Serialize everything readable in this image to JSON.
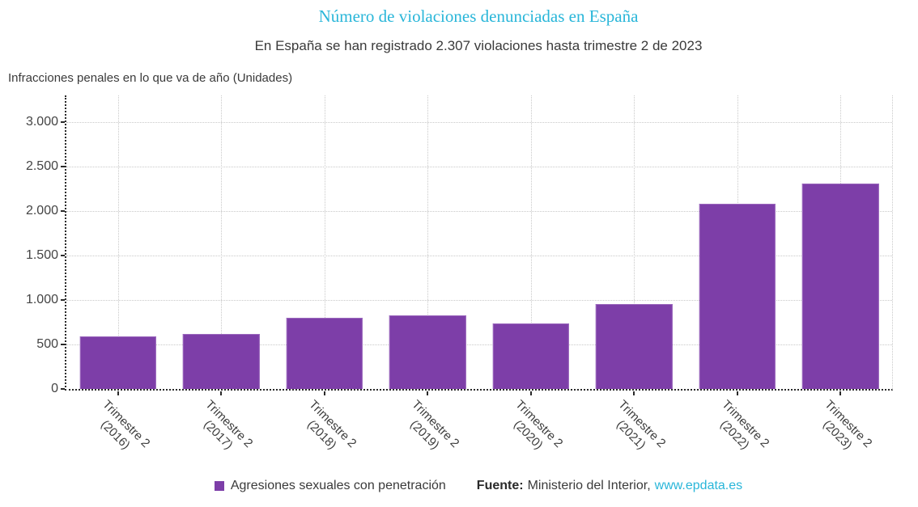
{
  "header": {
    "title": "Número de violaciones denunciadas en España",
    "subtitle": "En España se han registrado 2.307 violaciones hasta trimestre 2 de 2023",
    "y_axis_title": "Infracciones penales en lo que va de año (Unidades)"
  },
  "chart_data": {
    "type": "bar",
    "title": "Número de violaciones denunciadas en España",
    "subtitle": "En España se han registrado 2.307 violaciones hasta trimestre 2 de 2023",
    "ylabel": "Infracciones penales en lo que va de año (Unidades)",
    "xlabel": "",
    "categories": [
      "Trimestre 2 (2016)",
      "Trimestre 2 (2017)",
      "Trimestre 2 (2018)",
      "Trimestre 2 (2019)",
      "Trimestre 2 (2020)",
      "Trimestre 2 (2021)",
      "Trimestre 2 (2022)",
      "Trimestre 2 (2023)"
    ],
    "category_lines": [
      [
        "Trimestre 2",
        "(2016)"
      ],
      [
        "Trimestre 2",
        "(2017)"
      ],
      [
        "Trimestre 2",
        "(2018)"
      ],
      [
        "Trimestre 2",
        "(2019)"
      ],
      [
        "Trimestre 2",
        "(2020)"
      ],
      [
        "Trimestre 2",
        "(2021)"
      ],
      [
        "Trimestre 2",
        "(2022)"
      ],
      [
        "Trimestre 2",
        "(2023)"
      ]
    ],
    "series": [
      {
        "name": "Agresiones sexuales con penetración",
        "values": [
          587,
          617,
          796,
          825,
          732,
          959,
          2080,
          2307
        ]
      }
    ],
    "ylim": [
      0,
      3300
    ],
    "yticks": [
      0,
      500,
      1000,
      1500,
      2000,
      2500,
      3000
    ],
    "ytick_labels": [
      "0",
      "500",
      "1.000",
      "1.500",
      "2.000",
      "2.500",
      "3.000"
    ],
    "grid": true,
    "legend_position": "bottom",
    "bar_color": "#7d3ea8"
  },
  "legend": {
    "label": "Agresiones sexuales con penetración"
  },
  "footer": {
    "source_label": "Fuente:",
    "source_text": "Ministerio del Interior,",
    "source_link_text": "www.epdata.es"
  },
  "colors": {
    "title": "#29b6d9",
    "link": "#29b6d9",
    "bar": "#7d3ea8",
    "bar_border": "#9b68bd",
    "grid": "#c9c9c9",
    "axis": "#2a2a2a",
    "text": "#3d3d3d"
  }
}
